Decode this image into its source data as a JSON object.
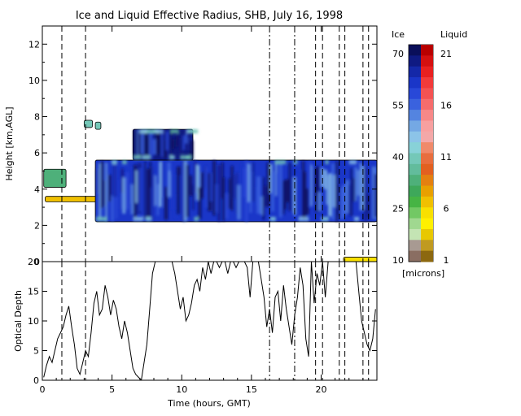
{
  "chart_data": [
    {
      "type": "heatmap",
      "title": "Ice and Liquid Effective Radius, SHB, July 16, 1998",
      "xlabel": "",
      "ylabel": "Height [km,AGL]",
      "xlim": [
        0,
        24
      ],
      "ylim": [
        0,
        13
      ],
      "y_ticks": [
        0,
        2,
        4,
        6,
        8,
        10,
        12
      ],
      "dashed_lines_x": [
        1.4,
        3.1,
        16.3,
        18.1,
        19.6,
        20.1,
        21.3,
        21.7,
        23.0,
        23.4
      ],
      "dash_dot_lines_x": [
        16.3,
        18.1
      ],
      "cloud_layers": [
        {
          "phase": "ice",
          "x": [
            0.1,
            1.7
          ],
          "y": [
            4.1,
            5.1
          ],
          "radius": 32
        },
        {
          "phase": "liquid",
          "x": [
            0.2,
            4.1
          ],
          "y": [
            3.3,
            3.6
          ],
          "radius": 6
        },
        {
          "phase": "ice",
          "x": [
            3.0,
            3.6
          ],
          "y": [
            7.4,
            7.8
          ],
          "radius": 40
        },
        {
          "phase": "ice",
          "x": [
            3.8,
            4.2
          ],
          "y": [
            7.3,
            7.7
          ],
          "radius": 40
        },
        {
          "phase": "ice",
          "x": [
            3.8,
            24.0
          ],
          "y": [
            2.2,
            5.6
          ],
          "radius": 62
        },
        {
          "phase": "ice",
          "x": [
            6.5,
            10.8
          ],
          "y": [
            5.6,
            7.3
          ],
          "radius": 66
        },
        {
          "phase": "liquid",
          "x": [
            21.6,
            24.0
          ],
          "y": [
            0.0,
            0.25
          ],
          "radius": 5
        }
      ],
      "colorbar": {
        "ice_label": "Ice",
        "liquid_label": "Liquid",
        "units": "[microns]",
        "ice_ticks": [
          "70",
          "55",
          "40",
          "25",
          "10"
        ],
        "liquid_ticks": [
          "21",
          "16",
          "11",
          "6",
          "1"
        ],
        "ice_colors": [
          "#0a0f5a",
          "#0f1a82",
          "#1428a8",
          "#1a36c8",
          "#2848d8",
          "#3a62de",
          "#5484e0",
          "#74a8e4",
          "#8cc4e8",
          "#88d2d8",
          "#74c8b8",
          "#62bc9c",
          "#4eb07a",
          "#3ea85a",
          "#46b444",
          "#72c864",
          "#a0d890",
          "#c4e4b4",
          "#a89a92",
          "#8a6e62"
        ],
        "liquid_colors": [
          "#b80000",
          "#d41010",
          "#e82020",
          "#f23a3a",
          "#f45252",
          "#f66c6c",
          "#f78888",
          "#f8a0a0",
          "#f4a8a8",
          "#f08a6a",
          "#e86e3e",
          "#e26020",
          "#e48010",
          "#e8a000",
          "#f0c000",
          "#f8e000",
          "#fff000",
          "#e8c800",
          "#c09a20",
          "#8c6810"
        ]
      }
    },
    {
      "type": "line",
      "xlabel": "Time (hours, GMT)",
      "ylabel": "Optical Depth",
      "xlim": [
        0,
        24
      ],
      "ylim": [
        0,
        20
      ],
      "x_ticks": [
        0,
        5,
        10,
        15,
        20
      ],
      "y_ticks": [
        0,
        5,
        10,
        15,
        20
      ],
      "x": [
        0.1,
        0.3,
        0.5,
        0.7,
        0.9,
        1.1,
        1.3,
        1.5,
        1.7,
        1.9,
        2.1,
        2.3,
        2.5,
        2.7,
        2.9,
        3.1,
        3.3,
        3.5,
        3.7,
        3.9,
        4.1,
        4.3,
        4.5,
        4.7,
        4.9,
        5.1,
        5.3,
        5.5,
        5.7,
        5.9,
        6.1,
        6.3,
        6.5,
        6.7,
        6.9,
        7.1,
        7.3,
        7.5,
        7.7,
        7.9,
        8.1,
        8.3,
        8.5,
        8.7,
        8.9,
        9.1,
        9.3,
        9.5,
        9.7,
        9.9,
        10.1,
        10.3,
        10.5,
        10.7,
        10.9,
        11.1,
        11.3,
        11.5,
        11.7,
        11.9,
        12.1,
        12.3,
        12.5,
        12.7,
        12.9,
        13.1,
        13.3,
        13.5,
        13.7,
        13.9,
        14.1,
        14.3,
        14.5,
        14.7,
        14.9,
        15.1,
        15.3,
        15.5,
        15.7,
        15.9,
        16.1,
        16.3,
        16.5,
        16.7,
        16.9,
        17.1,
        17.3,
        17.5,
        17.7,
        17.9,
        18.1,
        18.3,
        18.5,
        18.7,
        18.9,
        19.1,
        19.3,
        19.5,
        19.7,
        19.9,
        20.1,
        20.3,
        20.5,
        20.7,
        20.9,
        21.1,
        21.3,
        21.5,
        21.7,
        21.9,
        22.1,
        22.3,
        22.5,
        22.7,
        22.9,
        23.1,
        23.3,
        23.5,
        23.7,
        23.9
      ],
      "values": [
        0.5,
        2.5,
        4,
        3,
        5,
        7,
        8,
        9,
        11,
        12.5,
        9,
        6,
        2,
        1,
        3,
        5,
        4,
        8,
        13,
        15,
        11,
        12,
        16,
        14,
        11,
        13.5,
        12,
        9,
        7,
        10,
        8,
        5,
        2,
        1,
        0.5,
        0,
        3,
        6,
        12,
        18,
        20,
        20,
        20,
        20,
        20,
        20,
        20,
        18,
        15,
        12,
        14,
        10,
        11,
        13,
        16,
        17,
        15,
        19,
        17,
        20,
        18,
        20,
        20,
        19,
        20,
        20,
        18,
        20,
        20,
        19,
        20,
        20,
        20,
        19,
        14,
        20,
        20,
        20,
        17,
        14,
        9,
        12,
        8,
        14,
        15,
        10,
        16,
        12,
        9,
        6,
        11,
        14,
        19,
        16,
        7,
        4,
        20,
        13,
        18,
        16,
        20,
        14,
        20,
        20,
        20,
        20,
        20,
        20,
        20,
        20,
        20,
        20,
        20,
        15,
        10,
        8,
        6,
        5,
        7,
        12
      ]
    }
  ]
}
